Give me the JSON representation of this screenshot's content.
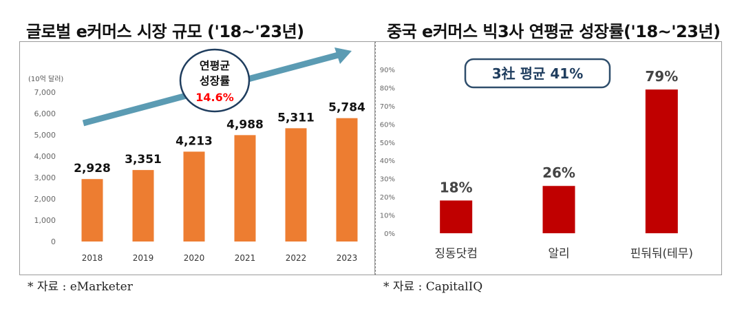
{
  "left": {
    "title": "글로벌 e커머스 시장 규모 ('18~'23년)",
    "unit_label": "(10억 달러)",
    "callout": {
      "line1": "연평균",
      "line2": "성장률",
      "rate": "14.6%"
    },
    "source": "* 자료 : eMarketer"
  },
  "right": {
    "title": "중국 e커머스 빅3사 연평균 성장률('18~'23년)",
    "callout": "3社 평균 41%",
    "source": "* 자료 : CapitalIQ"
  },
  "colors": {
    "bar_orange": "#ed7d31",
    "bar_red": "#c00000",
    "arrow": "#5b9bb3",
    "accent_red": "#ff0000",
    "callout_border": "#2e4d6b"
  },
  "chart_data": [
    {
      "type": "bar",
      "title": "글로벌 e커머스 시장 규모 ('18~'23년)",
      "ylabel": "(10억 달러)",
      "xlabel": "",
      "categories": [
        "2018",
        "2019",
        "2020",
        "2021",
        "2022",
        "2023"
      ],
      "values": [
        2928,
        3351,
        4213,
        4988,
        5311,
        5784
      ],
      "value_labels": [
        "2,928",
        "3,351",
        "4,213",
        "4,988",
        "5,311",
        "5,784"
      ],
      "ylim": [
        0,
        7000
      ],
      "yticks": [
        0,
        1000,
        2000,
        3000,
        4000,
        5000,
        6000,
        7000
      ],
      "ytick_labels": [
        "0",
        "1,000",
        "2,000",
        "3,000",
        "4,000",
        "5,000",
        "6,000",
        "7,000"
      ],
      "grid": false
    },
    {
      "type": "bar",
      "title": "중국 e커머스 빅3사 연평균 성장률('18~'23년)",
      "xlabel": "",
      "ylabel": "",
      "categories": [
        "징동닷컴",
        "알리",
        "핀둬둬(테무)"
      ],
      "values": [
        18,
        26,
        79
      ],
      "value_labels": [
        "18%",
        "26%",
        "79%"
      ],
      "ylim": [
        0,
        90
      ],
      "yticks": [
        0,
        10,
        20,
        30,
        40,
        50,
        60,
        70,
        80,
        90
      ],
      "ytick_labels": [
        "0%",
        "10%",
        "20%",
        "30%",
        "40%",
        "50%",
        "60%",
        "70%",
        "80%",
        "90%"
      ],
      "grid": false
    }
  ]
}
